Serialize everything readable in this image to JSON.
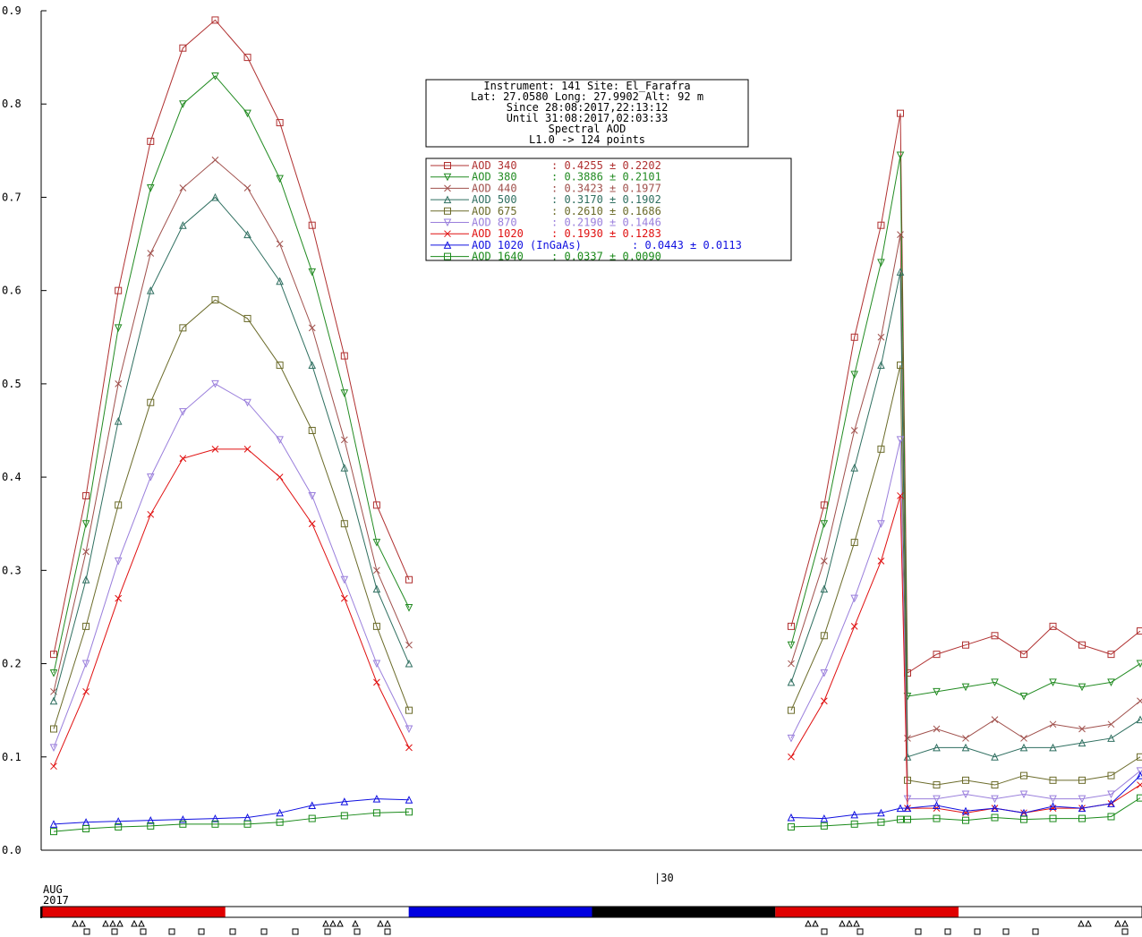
{
  "chart_data": {
    "type": "line",
    "ylim": [
      0.0,
      0.9
    ],
    "yticks": [
      "0.0",
      "0.1",
      "0.2",
      "0.3",
      "0.4",
      "0.5",
      "0.6",
      "0.7",
      "0.8",
      "0.9"
    ],
    "x_marker_label": "|30",
    "date_label": {
      "month": "AUG",
      "year": "2017"
    },
    "info_box": {
      "lines": [
        "Instrument: 141 Site: El_Farafra",
        "Lat: 27.0580 Long: 27.9902 Alt: 92 m",
        "Since 28:08:2017,22:13:12",
        "Until 31:08:2017,02:03:33",
        "Spectral AOD",
        "L1.0 -> 124 points"
      ]
    },
    "series": [
      {
        "name": "AOD 340",
        "stat": ": 0.4255 ± 0.2202",
        "color": "#b03030",
        "marker": "square",
        "seg1": [
          0.21,
          0.38,
          0.6,
          0.76,
          0.86,
          0.89,
          0.85,
          0.78,
          0.67,
          0.53,
          0.37,
          0.29
        ],
        "seg2": [
          0.24,
          0.37,
          0.55,
          0.67,
          0.79
        ],
        "seg3": [
          0.19,
          0.21,
          0.22,
          0.23,
          0.21,
          0.24,
          0.22,
          0.21,
          0.235
        ]
      },
      {
        "name": "AOD 380",
        "stat": ": 0.3886 ± 0.2101",
        "color": "#228b22",
        "marker": "tri-down",
        "seg1": [
          0.19,
          0.35,
          0.56,
          0.71,
          0.8,
          0.83,
          0.79,
          0.72,
          0.62,
          0.49,
          0.33,
          0.26
        ],
        "seg2": [
          0.22,
          0.35,
          0.51,
          0.63,
          0.745
        ],
        "seg3": [
          0.165,
          0.17,
          0.175,
          0.18,
          0.165,
          0.18,
          0.175,
          0.18,
          0.2
        ]
      },
      {
        "name": "AOD 440",
        "stat": ": 0.3423 ± 0.1977",
        "color": "#a0504c",
        "marker": "x",
        "seg1": [
          0.17,
          0.32,
          0.5,
          0.64,
          0.71,
          0.74,
          0.71,
          0.65,
          0.56,
          0.44,
          0.3,
          0.22
        ],
        "seg2": [
          0.2,
          0.31,
          0.45,
          0.55,
          0.66
        ],
        "seg3": [
          0.12,
          0.13,
          0.12,
          0.14,
          0.12,
          0.135,
          0.13,
          0.135,
          0.16
        ]
      },
      {
        "name": "AOD 500",
        "stat": ": 0.3170 ± 0.1902",
        "color": "#2f6f60",
        "marker": "tri-up",
        "seg1": [
          0.16,
          0.29,
          0.46,
          0.6,
          0.67,
          0.7,
          0.66,
          0.61,
          0.52,
          0.41,
          0.28,
          0.2
        ],
        "seg2": [
          0.18,
          0.28,
          0.41,
          0.52,
          0.62
        ],
        "seg3": [
          0.1,
          0.11,
          0.11,
          0.1,
          0.11,
          0.11,
          0.115,
          0.12,
          0.14
        ]
      },
      {
        "name": "AOD 675",
        "stat": ": 0.2610 ± 0.1686",
        "color": "#6b6b2a",
        "marker": "square",
        "seg1": [
          0.13,
          0.24,
          0.37,
          0.48,
          0.56,
          0.59,
          0.57,
          0.52,
          0.45,
          0.35,
          0.24,
          0.15
        ],
        "seg2": [
          0.15,
          0.23,
          0.33,
          0.43,
          0.52
        ],
        "seg3": [
          0.075,
          0.07,
          0.075,
          0.07,
          0.08,
          0.075,
          0.075,
          0.08,
          0.1
        ]
      },
      {
        "name": "AOD 870",
        "stat": ": 0.2190 ± 0.1446",
        "color": "#9a7fdc",
        "marker": "tri-down",
        "seg1": [
          0.11,
          0.2,
          0.31,
          0.4,
          0.47,
          0.5,
          0.48,
          0.44,
          0.38,
          0.29,
          0.2,
          0.13
        ],
        "seg2": [
          0.12,
          0.19,
          0.27,
          0.35,
          0.44
        ],
        "seg3": [
          0.055,
          0.055,
          0.06,
          0.055,
          0.06,
          0.055,
          0.055,
          0.06,
          0.085
        ]
      },
      {
        "name": "AOD 1020",
        "stat": ": 0.1930 ± 0.1283",
        "color": "#e01010",
        "marker": "x",
        "seg1": [
          0.09,
          0.17,
          0.27,
          0.36,
          0.42,
          0.43,
          0.43,
          0.4,
          0.35,
          0.27,
          0.18,
          0.11
        ],
        "seg2": [
          0.1,
          0.16,
          0.24,
          0.31,
          0.38
        ],
        "seg3": [
          0.045,
          0.045,
          0.04,
          0.045,
          0.04,
          0.045,
          0.045,
          0.05,
          0.07
        ]
      },
      {
        "name": "AOD 1020 (InGaAs)",
        "stat": ": 0.0443 ± 0.0113",
        "color": "#1010e0",
        "marker": "tri-up",
        "seg1": [
          0.028,
          0.03,
          0.031,
          0.032,
          0.033,
          0.034,
          0.035,
          0.04,
          0.048,
          0.052,
          0.055,
          0.054
        ],
        "seg2": [
          0.035,
          0.034,
          0.038,
          0.04,
          0.045
        ],
        "seg3": [
          0.045,
          0.048,
          0.042,
          0.045,
          0.04,
          0.047,
          0.045,
          0.05,
          0.08
        ]
      },
      {
        "name": "AOD 1640",
        "stat": ": 0.0337 ± 0.0090",
        "color": "#1a8a1a",
        "marker": "square",
        "seg1": [
          0.02,
          0.023,
          0.025,
          0.026,
          0.028,
          0.028,
          0.028,
          0.03,
          0.034,
          0.037,
          0.04,
          0.041
        ],
        "seg2": [
          0.025,
          0.026,
          0.028,
          0.03,
          0.033
        ],
        "seg3": [
          0.033,
          0.034,
          0.032,
          0.035,
          0.033,
          0.034,
          0.034,
          0.036,
          0.056
        ]
      }
    ],
    "color_bar": [
      "#e00000",
      "#ffffff",
      "#0000e0",
      "#000000",
      "#e00000",
      "#ffffff"
    ]
  }
}
